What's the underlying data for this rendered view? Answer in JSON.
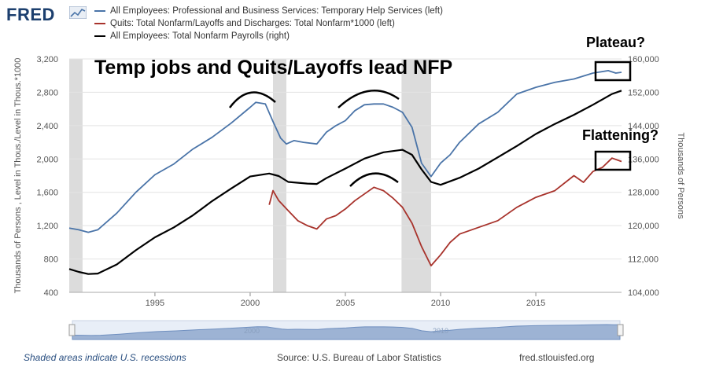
{
  "header": {
    "logo_text": "FRED"
  },
  "colors": {
    "temp_help": "#4a74a8",
    "quits": "#a8332c",
    "payrolls": "#000000",
    "recession": "#dcdcdc",
    "grid": "#e3e3e3",
    "navigator": "#9db3d4"
  },
  "footer": {
    "recession_note": "Shaded areas indicate U.S. recessions",
    "source": "Source: U.S. Bureau of Labor Statistics",
    "site": "fred.stlouisfed.org"
  },
  "annotations": {
    "headline": "Temp jobs and Quits/Layoffs lead NFP",
    "plateau": "Plateau?",
    "flattening": "Flattening?"
  },
  "chart_data": {
    "type": "line",
    "title": "",
    "xlabel": "",
    "ylabel_left": "Thousands of Persons , Level in Thous./Level in Thous.*1000",
    "ylabel_right": "Thousands of Persons",
    "xlim": [
      1990.5,
      2019.5
    ],
    "ylim_left": [
      400,
      3200
    ],
    "ylim_right": [
      104000,
      160000
    ],
    "x_ticks": [
      1995,
      2000,
      2005,
      2010,
      2015
    ],
    "left_ticks": [
      "400",
      "800",
      "1,200",
      "1,600",
      "2,000",
      "2,400",
      "2,800",
      "3,200"
    ],
    "right_ticks": [
      "104,000",
      "112,000",
      "120,000",
      "128,000",
      "136,000",
      "144,000",
      "152,000",
      "160,000"
    ],
    "recessions": [
      [
        1990.5,
        1991.2
      ],
      [
        2001.2,
        2001.9
      ],
      [
        2007.95,
        2009.5
      ]
    ],
    "navigator_labels": [
      "2000",
      "2010"
    ],
    "series": [
      {
        "name": "All Employees: Professional and Business Services: Temporary Help Services (left)",
        "axis": "left",
        "x": [
          1990.5,
          1991.0,
          1991.5,
          1992.0,
          1993.0,
          1994.0,
          1995.0,
          1996.0,
          1997.0,
          1998.0,
          1999.0,
          2000.0,
          2000.3,
          2000.8,
          2001.2,
          2001.6,
          2001.9,
          2002.3,
          2002.8,
          2003.5,
          2004.0,
          2004.5,
          2005.0,
          2005.5,
          2006.0,
          2006.5,
          2007.0,
          2007.5,
          2008.0,
          2008.5,
          2009.0,
          2009.5,
          2010.0,
          2010.5,
          2011.0,
          2012.0,
          2013.0,
          2014.0,
          2015.0,
          2016.0,
          2017.0,
          2018.0,
          2018.8,
          2019.2,
          2019.5
        ],
        "values": [
          1170,
          1150,
          1120,
          1150,
          1350,
          1600,
          1810,
          1940,
          2120,
          2260,
          2430,
          2620,
          2680,
          2660,
          2450,
          2250,
          2180,
          2220,
          2200,
          2180,
          2320,
          2400,
          2460,
          2580,
          2650,
          2660,
          2660,
          2620,
          2560,
          2380,
          1950,
          1790,
          1950,
          2050,
          2200,
          2420,
          2560,
          2780,
          2860,
          2920,
          2960,
          3030,
          3060,
          3030,
          3040
        ]
      },
      {
        "name": "Quits: Total Nonfarm/Layoffs and Discharges: Total Nonfarm*1000 (left)",
        "axis": "left",
        "x": [
          2001.0,
          2001.2,
          2001.5,
          2002.0,
          2002.5,
          2003.0,
          2003.5,
          2004.0,
          2004.5,
          2005.0,
          2005.5,
          2006.0,
          2006.5,
          2007.0,
          2007.5,
          2008.0,
          2008.5,
          2009.0,
          2009.5,
          2010.0,
          2010.5,
          2011.0,
          2012.0,
          2013.0,
          2014.0,
          2015.0,
          2016.0,
          2017.0,
          2017.5,
          2018.0,
          2018.5,
          2019.0,
          2019.5
        ],
        "values": [
          1450,
          1620,
          1500,
          1380,
          1260,
          1200,
          1160,
          1280,
          1320,
          1400,
          1500,
          1580,
          1660,
          1620,
          1530,
          1420,
          1230,
          950,
          720,
          850,
          1000,
          1100,
          1180,
          1260,
          1420,
          1540,
          1620,
          1800,
          1720,
          1850,
          1900,
          2010,
          1970
        ]
      },
      {
        "name": "All Employees: Total Nonfarm Payrolls (right)",
        "axis": "right",
        "x": [
          1990.5,
          1991.0,
          1991.5,
          1992.0,
          1993.0,
          1994.0,
          1995.0,
          1996.0,
          1997.0,
          1998.0,
          1999.0,
          2000.0,
          2001.0,
          2001.5,
          2002.0,
          2003.0,
          2003.5,
          2004.0,
          2005.0,
          2006.0,
          2007.0,
          2008.0,
          2008.5,
          2009.0,
          2009.5,
          2010.0,
          2011.0,
          2012.0,
          2013.0,
          2014.0,
          2015.0,
          2016.0,
          2017.0,
          2018.0,
          2019.0,
          2019.5
        ],
        "values": [
          109600,
          108900,
          108400,
          108500,
          110700,
          114100,
          117200,
          119600,
          122500,
          125900,
          128900,
          131800,
          132500,
          131900,
          130500,
          130100,
          130000,
          131400,
          133700,
          136100,
          137600,
          138200,
          137000,
          133500,
          130500,
          129800,
          131500,
          133700,
          136400,
          139100,
          142000,
          144400,
          146600,
          149000,
          151600,
          152400
        ]
      }
    ]
  }
}
